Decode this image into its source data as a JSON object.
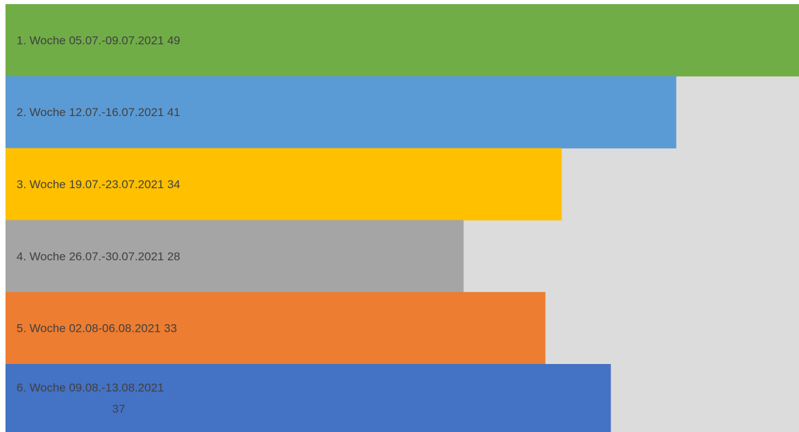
{
  "chart_data": {
    "type": "bar",
    "orientation": "horizontal",
    "categories": [
      "1. Woche 05.07.-09.07.2021",
      "2. Woche 12.07.-16.07.2021",
      "3. Woche 19.07.-23.07.2021",
      "4. Woche 26.07.-30.07.2021",
      "5. Woche 02.08-06.08.2021",
      "6. Woche 09.08.-13.08.2021"
    ],
    "values": [
      49,
      41,
      34,
      28,
      33,
      37
    ],
    "colors": [
      "#70ad47",
      "#5b9bd5",
      "#ffc000",
      "#a5a5a5",
      "#ed7d31",
      "#4472c4"
    ],
    "background_color": "#dcdcdc",
    "label_color": "#404040",
    "xlim": [
      0,
      48.5
    ],
    "grid": false,
    "legend": "none",
    "title": "",
    "xlabel": "",
    "ylabel": ""
  }
}
